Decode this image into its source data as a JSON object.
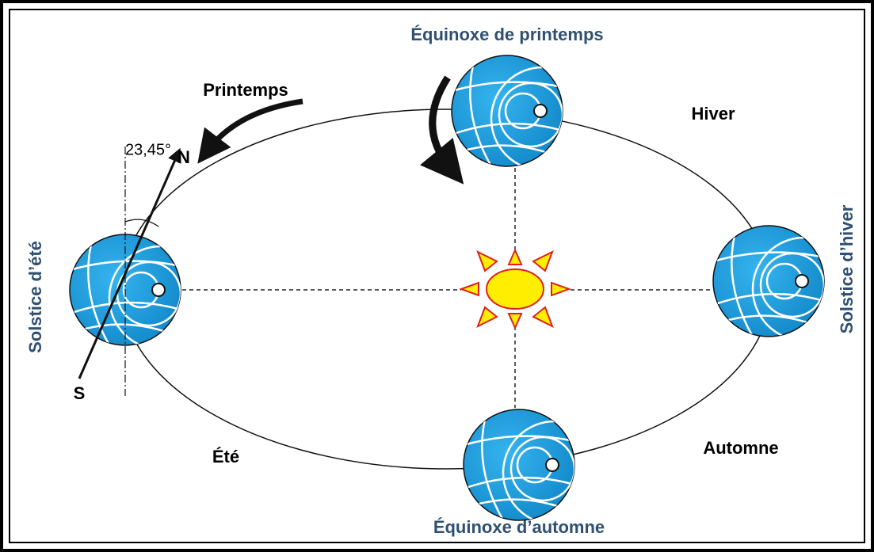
{
  "positions": {
    "spring_equinox": "Équinoxe de printemps",
    "summer_solstice": "Solstice d’été",
    "winter_solstice": "Solstice d’hiver",
    "autumn_equinox": "Équinoxe d’automne"
  },
  "seasons": {
    "spring": "Printemps",
    "winter": "Hiver",
    "summer": "Été",
    "autumn": "Automne"
  },
  "axis": {
    "angle": "23,45°",
    "north": "N",
    "south": "S"
  }
}
